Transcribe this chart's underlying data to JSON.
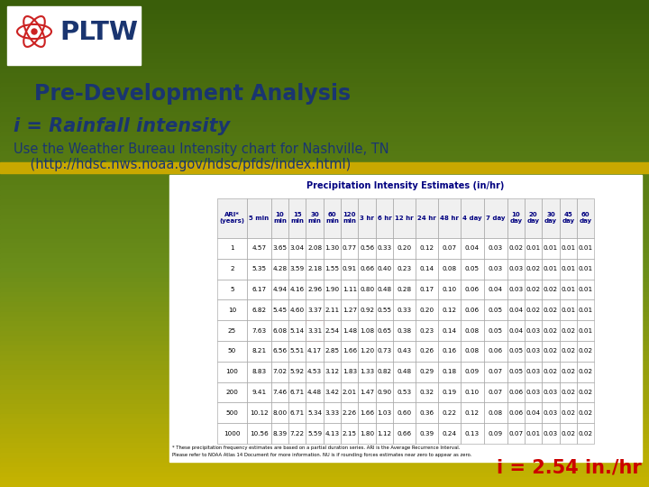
{
  "title": "Pre-Development Analysis",
  "subtitle1": "i = Rainfall intensity",
  "subtitle2_line1": "Use the Weather Bureau Intensity chart for Nashville, TN",
  "subtitle2_line2": "    (http://hdsc.nws.noaa.gov/hdsc/pfds/index.html)",
  "bottom_text": "i = 2.54 in./hr",
  "bg_top_color": "#3a5e0a",
  "bg_mid_color": "#6b8e1a",
  "bg_bottom_color": "#c8b400",
  "table_title": "Precipitation Intensity Estimates (in/hr)",
  "col_headers": [
    "ARI*\n(years)",
    "5 min",
    "10\nmin",
    "15\nmin",
    "30\nmin",
    "60\nmin",
    "120\nmin",
    "3 hr",
    "6 hr",
    "12 hr",
    "24 hr",
    "48 hr",
    "4 day",
    "7 day",
    "10\nday",
    "20\nday",
    "30\nday",
    "45\nday",
    "60\nday"
  ],
  "table_data": [
    [
      "1",
      "4.57",
      "3.65",
      "3.04",
      "2.08",
      "1.30",
      "0.77",
      "0.56",
      "0.33",
      "0.20",
      "0.12",
      "0.07",
      "0.04",
      "0.03",
      "0.02",
      "0.01",
      "0.01",
      "0.01",
      "0.01"
    ],
    [
      "2",
      "5.35",
      "4.28",
      "3.59",
      "2.18",
      "1.55",
      "0.91",
      "0.66",
      "0.40",
      "0.23",
      "0.14",
      "0.08",
      "0.05",
      "0.03",
      "0.03",
      "0.02",
      "0.01",
      "0.01",
      "0.01"
    ],
    [
      "5",
      "6.17",
      "4.94",
      "4.16",
      "2.96",
      "1.90",
      "1.11",
      "0.80",
      "0.48",
      "0.28",
      "0.17",
      "0.10",
      "0.06",
      "0.04",
      "0.03",
      "0.02",
      "0.02",
      "0.01",
      "0.01"
    ],
    [
      "10",
      "6.82",
      "5.45",
      "4.60",
      "3.37",
      "2.11",
      "1.27",
      "0.92",
      "0.55",
      "0.33",
      "0.20",
      "0.12",
      "0.06",
      "0.05",
      "0.04",
      "0.02",
      "0.02",
      "0.01",
      "0.01"
    ],
    [
      "25",
      "7.63",
      "6.08",
      "5.14",
      "3.31",
      "2.54",
      "1.48",
      "1.08",
      "0.65",
      "0.38",
      "0.23",
      "0.14",
      "0.08",
      "0.05",
      "0.04",
      "0.03",
      "0.02",
      "0.02",
      "0.01"
    ],
    [
      "50",
      "8.21",
      "6.56",
      "5.51",
      "4.17",
      "2.85",
      "1.66",
      "1.20",
      "0.73",
      "0.43",
      "0.26",
      "0.16",
      "0.08",
      "0.06",
      "0.05",
      "0.03",
      "0.02",
      "0.02",
      "0.02"
    ],
    [
      "100",
      "8.83",
      "7.02",
      "5.92",
      "4.53",
      "3.12",
      "1.83",
      "1.33",
      "0.82",
      "0.48",
      "0.29",
      "0.18",
      "0.09",
      "0.07",
      "0.05",
      "0.03",
      "0.02",
      "0.02",
      "0.02"
    ],
    [
      "200",
      "9.41",
      "7.46",
      "6.71",
      "4.48",
      "3.42",
      "2.01",
      "1.47",
      "0.90",
      "0.53",
      "0.32",
      "0.19",
      "0.10",
      "0.07",
      "0.06",
      "0.03",
      "0.03",
      "0.02",
      "0.02"
    ],
    [
      "500",
      "10.12",
      "8.00",
      "6.71",
      "5.34",
      "3.33",
      "2.26",
      "1.66",
      "1.03",
      "0.60",
      "0.36",
      "0.22",
      "0.12",
      "0.08",
      "0.06",
      "0.04",
      "0.03",
      "0.02",
      "0.02"
    ],
    [
      "1000",
      "10.56",
      "8.39",
      "7.22",
      "5.59",
      "4.13",
      "2.15",
      "1.80",
      "1.12",
      "0.66",
      "0.39",
      "0.24",
      "0.13",
      "0.09",
      "0.07",
      "0.01",
      "0.03",
      "0.02",
      "0.02"
    ]
  ],
  "circle_data_row": 4,
  "circle_data_col": 4,
  "footer1": "* These precipitation frequency estimates are based on a partial duration series. ARI is the Average Recurrence Interval.",
  "footer2": "Please refer to NOAA Atlas 14 Document for more information. NU is if rounding forces estimates near zero to appear as zero.",
  "title_color": "#1a3570",
  "bottom_text_color": "#cc0000",
  "header_text_color": "#000080"
}
